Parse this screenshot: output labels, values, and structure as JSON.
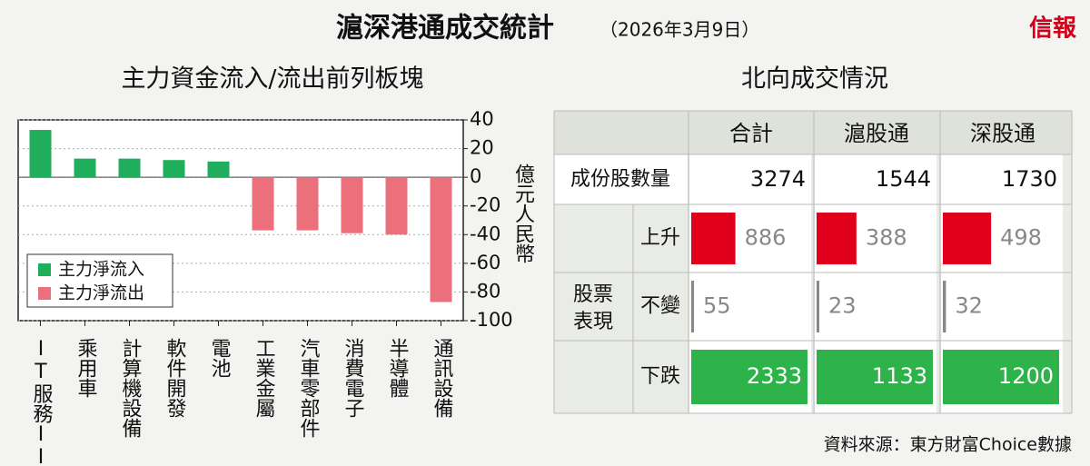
{
  "title": "滬深港通成交統計",
  "date": "（2026年3月9日）",
  "brand": "信報",
  "chart_data": {
    "type": "bar",
    "title": "主力資金流入/流出前列板塊",
    "y_label": "億元人民幣",
    "categories": [
      "IT服務II",
      "乘用車",
      "計算機設備",
      "軟件開發",
      "電池",
      "工業金屬",
      "汽車零部件",
      "消費電子",
      "半導體",
      "通訊設備"
    ],
    "series": [
      {
        "name": "主力淨流入",
        "color": "#1fae5c",
        "values": [
          33,
          13,
          13,
          12,
          11,
          null,
          null,
          null,
          null,
          null
        ]
      },
      {
        "name": "主力淨流出",
        "color": "#ec707c",
        "values": [
          null,
          null,
          null,
          null,
          null,
          -37,
          -37,
          -39,
          -40,
          -87
        ]
      }
    ],
    "ylim": [
      -100,
      40
    ],
    "yticks": [
      40,
      20,
      0,
      -20,
      -40,
      -60,
      -80,
      -100
    ],
    "grid": true,
    "legend": "bottom-left"
  },
  "table": {
    "title": "北向成交情況",
    "columns": [
      "合計",
      "滬股通",
      "深股通"
    ],
    "rows": [
      {
        "label": "成份股數量",
        "values": [
          3274,
          1544,
          1730
        ]
      }
    ],
    "group": {
      "label_lines": [
        "股票",
        "表現"
      ],
      "rows": [
        {
          "label": "上升",
          "color": "#e0001b",
          "values": [
            886,
            388,
            498
          ]
        },
        {
          "label": "不變",
          "color": "#888888",
          "values": [
            55,
            23,
            32
          ]
        },
        {
          "label": "下跌",
          "color": "#2db34a",
          "values": [
            2333,
            1133,
            1200
          ]
        }
      ]
    }
  },
  "source": "資料來源：東方財富Choice數據"
}
